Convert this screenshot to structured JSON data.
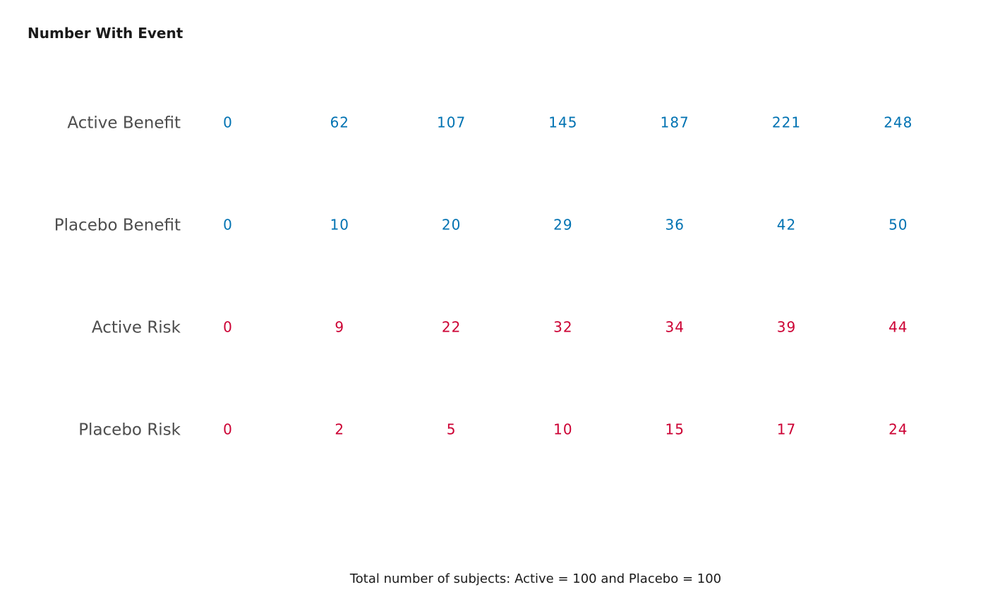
{
  "chart_data": {
    "type": "table",
    "title": "Number With Event",
    "rows": [
      {
        "label": "Active Benefit",
        "group": "benefit",
        "values": [
          0,
          62,
          107,
          145,
          187,
          221,
          248
        ]
      },
      {
        "label": "Placebo Benefit",
        "group": "benefit",
        "values": [
          0,
          10,
          20,
          29,
          36,
          42,
          50
        ]
      },
      {
        "label": "Active Risk",
        "group": "risk",
        "values": [
          0,
          9,
          22,
          32,
          34,
          39,
          44
        ]
      },
      {
        "label": "Placebo Risk",
        "group": "risk",
        "values": [
          0,
          2,
          5,
          10,
          15,
          17,
          24
        ]
      }
    ],
    "colors": {
      "benefit": "#0072b2",
      "risk": "#cc0033"
    },
    "caption": "Total number of subjects: Active = 100 and Placebo = 100"
  }
}
